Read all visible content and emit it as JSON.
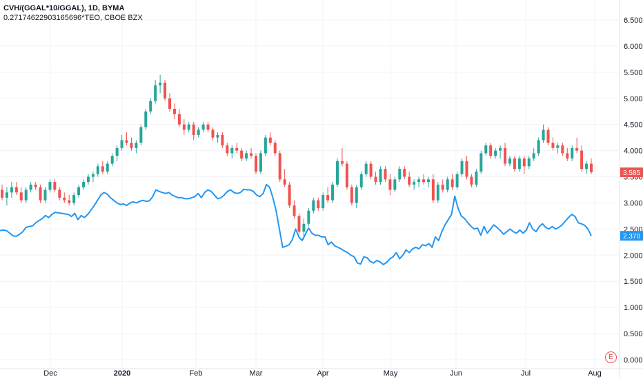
{
  "chart_data": {
    "type": "candlestick+line",
    "legend": {
      "primary": "CVH/(GGAL*10/GGAL), 1D, BYMA",
      "secondary": "0.27174622903165696*TEO, CBOE BZX"
    },
    "y_axis": {
      "ticks": [
        "6.500",
        "6.000",
        "5.500",
        "5.000",
        "4.500",
        "4.000",
        "3.500",
        "3.000",
        "2.500",
        "2.000",
        "1.500",
        "1.000",
        "0.500",
        "0.000"
      ],
      "range": [
        0,
        6.9
      ]
    },
    "x_axis": {
      "ticks": [
        {
          "label": "Dec",
          "bold": false
        },
        {
          "label": "2020",
          "bold": true
        },
        {
          "label": "Feb",
          "bold": false
        },
        {
          "label": "Mar",
          "bold": false
        },
        {
          "label": "Apr",
          "bold": false
        },
        {
          "label": "May",
          "bold": false
        },
        {
          "label": "Jun",
          "bold": false
        },
        {
          "label": "Jul",
          "bold": false
        },
        {
          "label": "Aug",
          "bold": false
        }
      ]
    },
    "series": [
      {
        "name": "CVH/(GGAL*10/GGAL), 1D, BYMA",
        "kind": "candlestick",
        "up_color": "#26a69a",
        "down_color": "#ef5350",
        "ohlc": [
          [
            3.25,
            3.35,
            3.05,
            3.1
          ],
          [
            3.1,
            3.3,
            2.95,
            3.2
          ],
          [
            3.2,
            3.4,
            3.1,
            3.3
          ],
          [
            3.3,
            3.4,
            3.15,
            3.2
          ],
          [
            3.2,
            3.3,
            3.0,
            3.05
          ],
          [
            3.05,
            3.3,
            3.0,
            3.25
          ],
          [
            3.25,
            3.4,
            3.2,
            3.35
          ],
          [
            3.35,
            3.4,
            3.25,
            3.3
          ],
          [
            3.3,
            3.35,
            3.0,
            3.05
          ],
          [
            3.05,
            3.3,
            3.0,
            3.25
          ],
          [
            3.25,
            3.45,
            3.2,
            3.4
          ],
          [
            3.4,
            3.45,
            3.2,
            3.25
          ],
          [
            3.25,
            3.3,
            3.05,
            3.1
          ],
          [
            3.1,
            3.2,
            3.0,
            3.05
          ],
          [
            3.05,
            3.15,
            2.95,
            3.0
          ],
          [
            3.0,
            3.2,
            2.95,
            3.15
          ],
          [
            3.15,
            3.35,
            3.1,
            3.3
          ],
          [
            3.3,
            3.45,
            3.25,
            3.4
          ],
          [
            3.4,
            3.55,
            3.35,
            3.5
          ],
          [
            3.5,
            3.6,
            3.4,
            3.55
          ],
          [
            3.55,
            3.75,
            3.5,
            3.7
          ],
          [
            3.7,
            3.8,
            3.55,
            3.6
          ],
          [
            3.6,
            3.8,
            3.55,
            3.75
          ],
          [
            3.75,
            3.95,
            3.7,
            3.9
          ],
          [
            3.9,
            4.1,
            3.8,
            4.05
          ],
          [
            4.05,
            4.3,
            4.0,
            4.2
          ],
          [
            4.2,
            4.35,
            4.1,
            4.15
          ],
          [
            4.15,
            4.25,
            4.0,
            4.05
          ],
          [
            4.05,
            4.2,
            3.95,
            4.15
          ],
          [
            4.15,
            4.5,
            4.1,
            4.45
          ],
          [
            4.45,
            4.8,
            4.4,
            4.75
          ],
          [
            4.75,
            5.0,
            4.7,
            4.95
          ],
          [
            4.95,
            5.35,
            4.9,
            5.25
          ],
          [
            5.25,
            5.45,
            5.1,
            5.3
          ],
          [
            5.3,
            5.35,
            4.95,
            5.0
          ],
          [
            5.0,
            5.1,
            4.75,
            4.8
          ],
          [
            4.8,
            4.9,
            4.6,
            4.7
          ],
          [
            4.7,
            4.8,
            4.45,
            4.5
          ],
          [
            4.5,
            4.6,
            4.3,
            4.4
          ],
          [
            4.4,
            4.55,
            4.35,
            4.5
          ],
          [
            4.5,
            4.55,
            4.2,
            4.3
          ],
          [
            4.3,
            4.45,
            4.25,
            4.4
          ],
          [
            4.4,
            4.55,
            4.35,
            4.5
          ],
          [
            4.5,
            4.55,
            4.35,
            4.4
          ],
          [
            4.4,
            4.45,
            4.2,
            4.25
          ],
          [
            4.25,
            4.35,
            4.15,
            4.3
          ],
          [
            4.3,
            4.35,
            4.05,
            4.1
          ],
          [
            4.1,
            4.15,
            3.9,
            3.95
          ],
          [
            3.95,
            4.1,
            3.85,
            4.05
          ],
          [
            4.05,
            4.15,
            3.95,
            4.0
          ],
          [
            4.0,
            4.05,
            3.8,
            3.85
          ],
          [
            3.85,
            4.0,
            3.8,
            3.95
          ],
          [
            3.95,
            4.05,
            3.85,
            3.9
          ],
          [
            3.9,
            3.95,
            3.55,
            3.6
          ],
          [
            3.6,
            4.0,
            3.55,
            3.95
          ],
          [
            3.95,
            4.3,
            3.9,
            4.25
          ],
          [
            4.25,
            4.35,
            4.1,
            4.15
          ],
          [
            4.15,
            4.2,
            3.9,
            3.95
          ],
          [
            3.95,
            4.0,
            3.4,
            3.45
          ],
          [
            3.45,
            3.65,
            3.3,
            3.35
          ],
          [
            3.35,
            3.4,
            2.9,
            2.95
          ],
          [
            2.95,
            3.05,
            2.7,
            2.75
          ],
          [
            2.75,
            2.8,
            2.4,
            2.45
          ],
          [
            2.45,
            2.7,
            2.3,
            2.6
          ],
          [
            2.6,
            2.9,
            2.55,
            2.85
          ],
          [
            2.85,
            3.1,
            2.8,
            3.05
          ],
          [
            3.05,
            3.1,
            2.85,
            2.9
          ],
          [
            2.9,
            3.2,
            2.85,
            3.15
          ],
          [
            3.15,
            3.3,
            3.0,
            3.05
          ],
          [
            3.05,
            3.4,
            3.0,
            3.35
          ],
          [
            3.35,
            3.85,
            3.3,
            3.8
          ],
          [
            3.8,
            4.05,
            3.7,
            3.75
          ],
          [
            3.75,
            3.8,
            3.25,
            3.3
          ],
          [
            3.3,
            3.35,
            2.95,
            3.0
          ],
          [
            3.0,
            3.35,
            2.9,
            3.3
          ],
          [
            3.3,
            3.6,
            3.25,
            3.55
          ],
          [
            3.55,
            3.8,
            3.5,
            3.75
          ],
          [
            3.75,
            3.8,
            3.45,
            3.5
          ],
          [
            3.5,
            3.6,
            3.35,
            3.4
          ],
          [
            3.4,
            3.7,
            3.35,
            3.65
          ],
          [
            3.65,
            3.7,
            3.4,
            3.45
          ],
          [
            3.45,
            3.55,
            3.15,
            3.25
          ],
          [
            3.25,
            3.5,
            3.2,
            3.45
          ],
          [
            3.45,
            3.7,
            3.4,
            3.65
          ],
          [
            3.65,
            3.7,
            3.45,
            3.5
          ],
          [
            3.5,
            3.6,
            3.3,
            3.35
          ],
          [
            3.35,
            3.45,
            3.25,
            3.4
          ],
          [
            3.4,
            3.5,
            3.3,
            3.45
          ],
          [
            3.45,
            3.55,
            3.35,
            3.4
          ],
          [
            3.4,
            3.5,
            3.3,
            3.45
          ],
          [
            3.45,
            3.55,
            3.0,
            3.05
          ],
          [
            3.05,
            3.4,
            3.0,
            3.35
          ],
          [
            3.35,
            3.45,
            3.2,
            3.25
          ],
          [
            3.25,
            3.5,
            3.2,
            3.45
          ],
          [
            3.45,
            3.55,
            3.25,
            3.3
          ],
          [
            3.3,
            3.6,
            3.25,
            3.55
          ],
          [
            3.55,
            3.85,
            3.5,
            3.8
          ],
          [
            3.8,
            3.9,
            3.45,
            3.5
          ],
          [
            3.5,
            3.55,
            3.3,
            3.35
          ],
          [
            3.35,
            3.65,
            3.3,
            3.6
          ],
          [
            3.6,
            4.0,
            3.55,
            3.95
          ],
          [
            3.95,
            4.15,
            3.9,
            4.1
          ],
          [
            4.1,
            4.15,
            3.85,
            3.9
          ],
          [
            3.9,
            4.05,
            3.85,
            4.0
          ],
          [
            4.0,
            4.1,
            3.85,
            4.05
          ],
          [
            4.05,
            4.15,
            3.7,
            3.75
          ],
          [
            3.75,
            3.9,
            3.7,
            3.85
          ],
          [
            3.85,
            3.9,
            3.6,
            3.65
          ],
          [
            3.65,
            3.9,
            3.6,
            3.85
          ],
          [
            3.85,
            3.9,
            3.55,
            3.7
          ],
          [
            3.7,
            3.9,
            3.65,
            3.85
          ],
          [
            3.85,
            4.05,
            3.8,
            3.95
          ],
          [
            3.95,
            4.25,
            3.9,
            4.2
          ],
          [
            4.2,
            4.5,
            4.15,
            4.4
          ],
          [
            4.4,
            4.45,
            4.1,
            4.15
          ],
          [
            4.15,
            4.25,
            4.0,
            4.05
          ],
          [
            4.05,
            4.15,
            3.95,
            4.1
          ],
          [
            4.1,
            4.15,
            3.9,
            3.95
          ],
          [
            3.95,
            4.05,
            3.8,
            3.85
          ],
          [
            3.85,
            4.1,
            3.8,
            4.05
          ],
          [
            4.05,
            4.25,
            3.95,
            4.0
          ],
          [
            4.0,
            4.1,
            3.6,
            3.65
          ],
          [
            3.65,
            3.8,
            3.55,
            3.75
          ],
          [
            3.75,
            3.85,
            3.55,
            3.585
          ]
        ]
      },
      {
        "name": "0.27174622903165696*TEO, CBOE BZX",
        "kind": "line",
        "color": "#2196f3",
        "values": [
          2.47,
          2.48,
          2.47,
          2.42,
          2.37,
          2.36,
          2.4,
          2.45,
          2.53,
          2.55,
          2.56,
          2.62,
          2.66,
          2.7,
          2.76,
          2.72,
          2.78,
          2.82,
          2.81,
          2.8,
          2.79,
          2.78,
          2.74,
          2.8,
          2.68,
          2.76,
          2.72,
          2.78,
          2.86,
          2.95,
          3.05,
          3.15,
          3.2,
          3.17,
          3.1,
          3.05,
          3.0,
          2.97,
          2.98,
          2.95,
          3.0,
          3.02,
          3.0,
          3.03,
          3.05,
          3.03,
          3.04,
          3.12,
          3.25,
          3.22,
          3.2,
          3.18,
          3.2,
          3.15,
          3.12,
          3.1,
          3.1,
          3.08,
          3.08,
          3.1,
          3.12,
          3.18,
          3.1,
          3.2,
          3.25,
          3.22,
          3.15,
          3.08,
          3.1,
          3.15,
          3.22,
          3.25,
          3.2,
          3.18,
          3.2,
          3.26,
          3.25,
          3.25,
          3.22,
          3.15,
          3.12,
          3.18,
          3.35,
          3.3,
          3.1,
          2.85,
          2.5,
          2.15,
          2.17,
          2.2,
          2.3,
          2.5,
          2.35,
          2.28,
          2.4,
          2.52,
          2.42,
          2.38,
          2.38,
          2.35,
          2.35,
          2.2,
          2.25,
          2.18,
          2.15,
          2.12,
          2.08,
          2.05,
          2.0,
          1.97,
          1.85,
          1.83,
          1.97,
          1.95,
          1.88,
          1.85,
          1.9,
          1.87,
          1.82,
          1.86,
          1.93,
          1.97,
          2.05,
          1.93,
          2.0,
          2.1,
          2.05,
          2.12,
          2.15,
          2.12,
          2.2,
          2.18,
          2.22,
          2.15,
          2.35,
          2.28,
          2.45,
          2.58,
          2.68,
          2.78,
          3.13,
          2.9,
          2.75,
          2.7,
          2.62,
          2.55,
          2.5,
          2.52,
          2.38,
          2.55,
          2.42,
          2.5,
          2.58,
          2.53,
          2.47,
          2.4,
          2.45,
          2.5,
          2.45,
          2.42,
          2.48,
          2.42,
          2.48,
          2.62,
          2.5,
          2.45,
          2.55,
          2.6,
          2.53,
          2.5,
          2.55,
          2.5,
          2.53,
          2.58,
          2.65,
          2.72,
          2.78,
          2.74,
          2.62,
          2.6,
          2.57,
          2.5,
          2.37
        ]
      }
    ],
    "last_values": [
      {
        "label": "3.585",
        "value": 3.585,
        "color": "#ef5350"
      },
      {
        "label": "2.370",
        "value": 2.37,
        "color": "#2196f3"
      }
    ],
    "grid": true,
    "markers": {
      "events_badge": "E"
    }
  }
}
